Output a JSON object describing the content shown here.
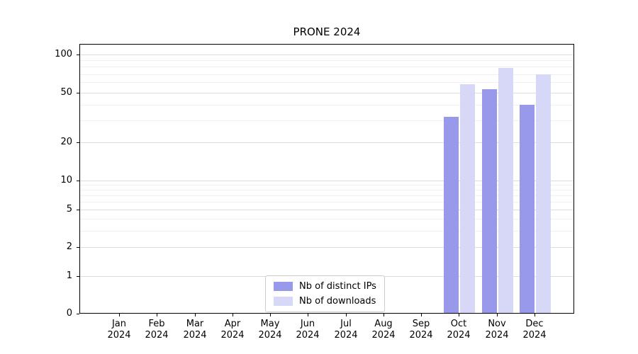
{
  "chart_data": {
    "type": "bar",
    "title": "PRONE 2024",
    "xlabel": "",
    "ylabel": "",
    "yscale": "symlog",
    "ylim": [
      0,
      120
    ],
    "grid": true,
    "legend_position": "lower center",
    "yticks": [
      0,
      1,
      2,
      5,
      10,
      20,
      50,
      100
    ],
    "categories": [
      "Jan 2024",
      "Feb 2024",
      "Mar 2024",
      "Apr 2024",
      "May 2024",
      "Jun 2024",
      "Jul 2024",
      "Aug 2024",
      "Sep 2024",
      "Oct 2024",
      "Nov 2024",
      "Dec 2024"
    ],
    "series": [
      {
        "name": "Nb of distinct IPs",
        "color": "#9999ec",
        "values": [
          0,
          0,
          0,
          0,
          0,
          0,
          0,
          0,
          0,
          32,
          53,
          40
        ]
      },
      {
        "name": "Nb of downloads",
        "color": "#d7d7f7",
        "values": [
          0,
          0,
          0,
          0,
          0,
          0,
          0,
          0,
          0,
          58,
          78,
          70
        ]
      }
    ],
    "colors": {
      "distinct_ips": "#9999ec",
      "downloads": "#d7d7f7",
      "grid_major": "#dcdcdc",
      "grid_minor": "#f0f0f0",
      "spine": "#000000"
    }
  }
}
